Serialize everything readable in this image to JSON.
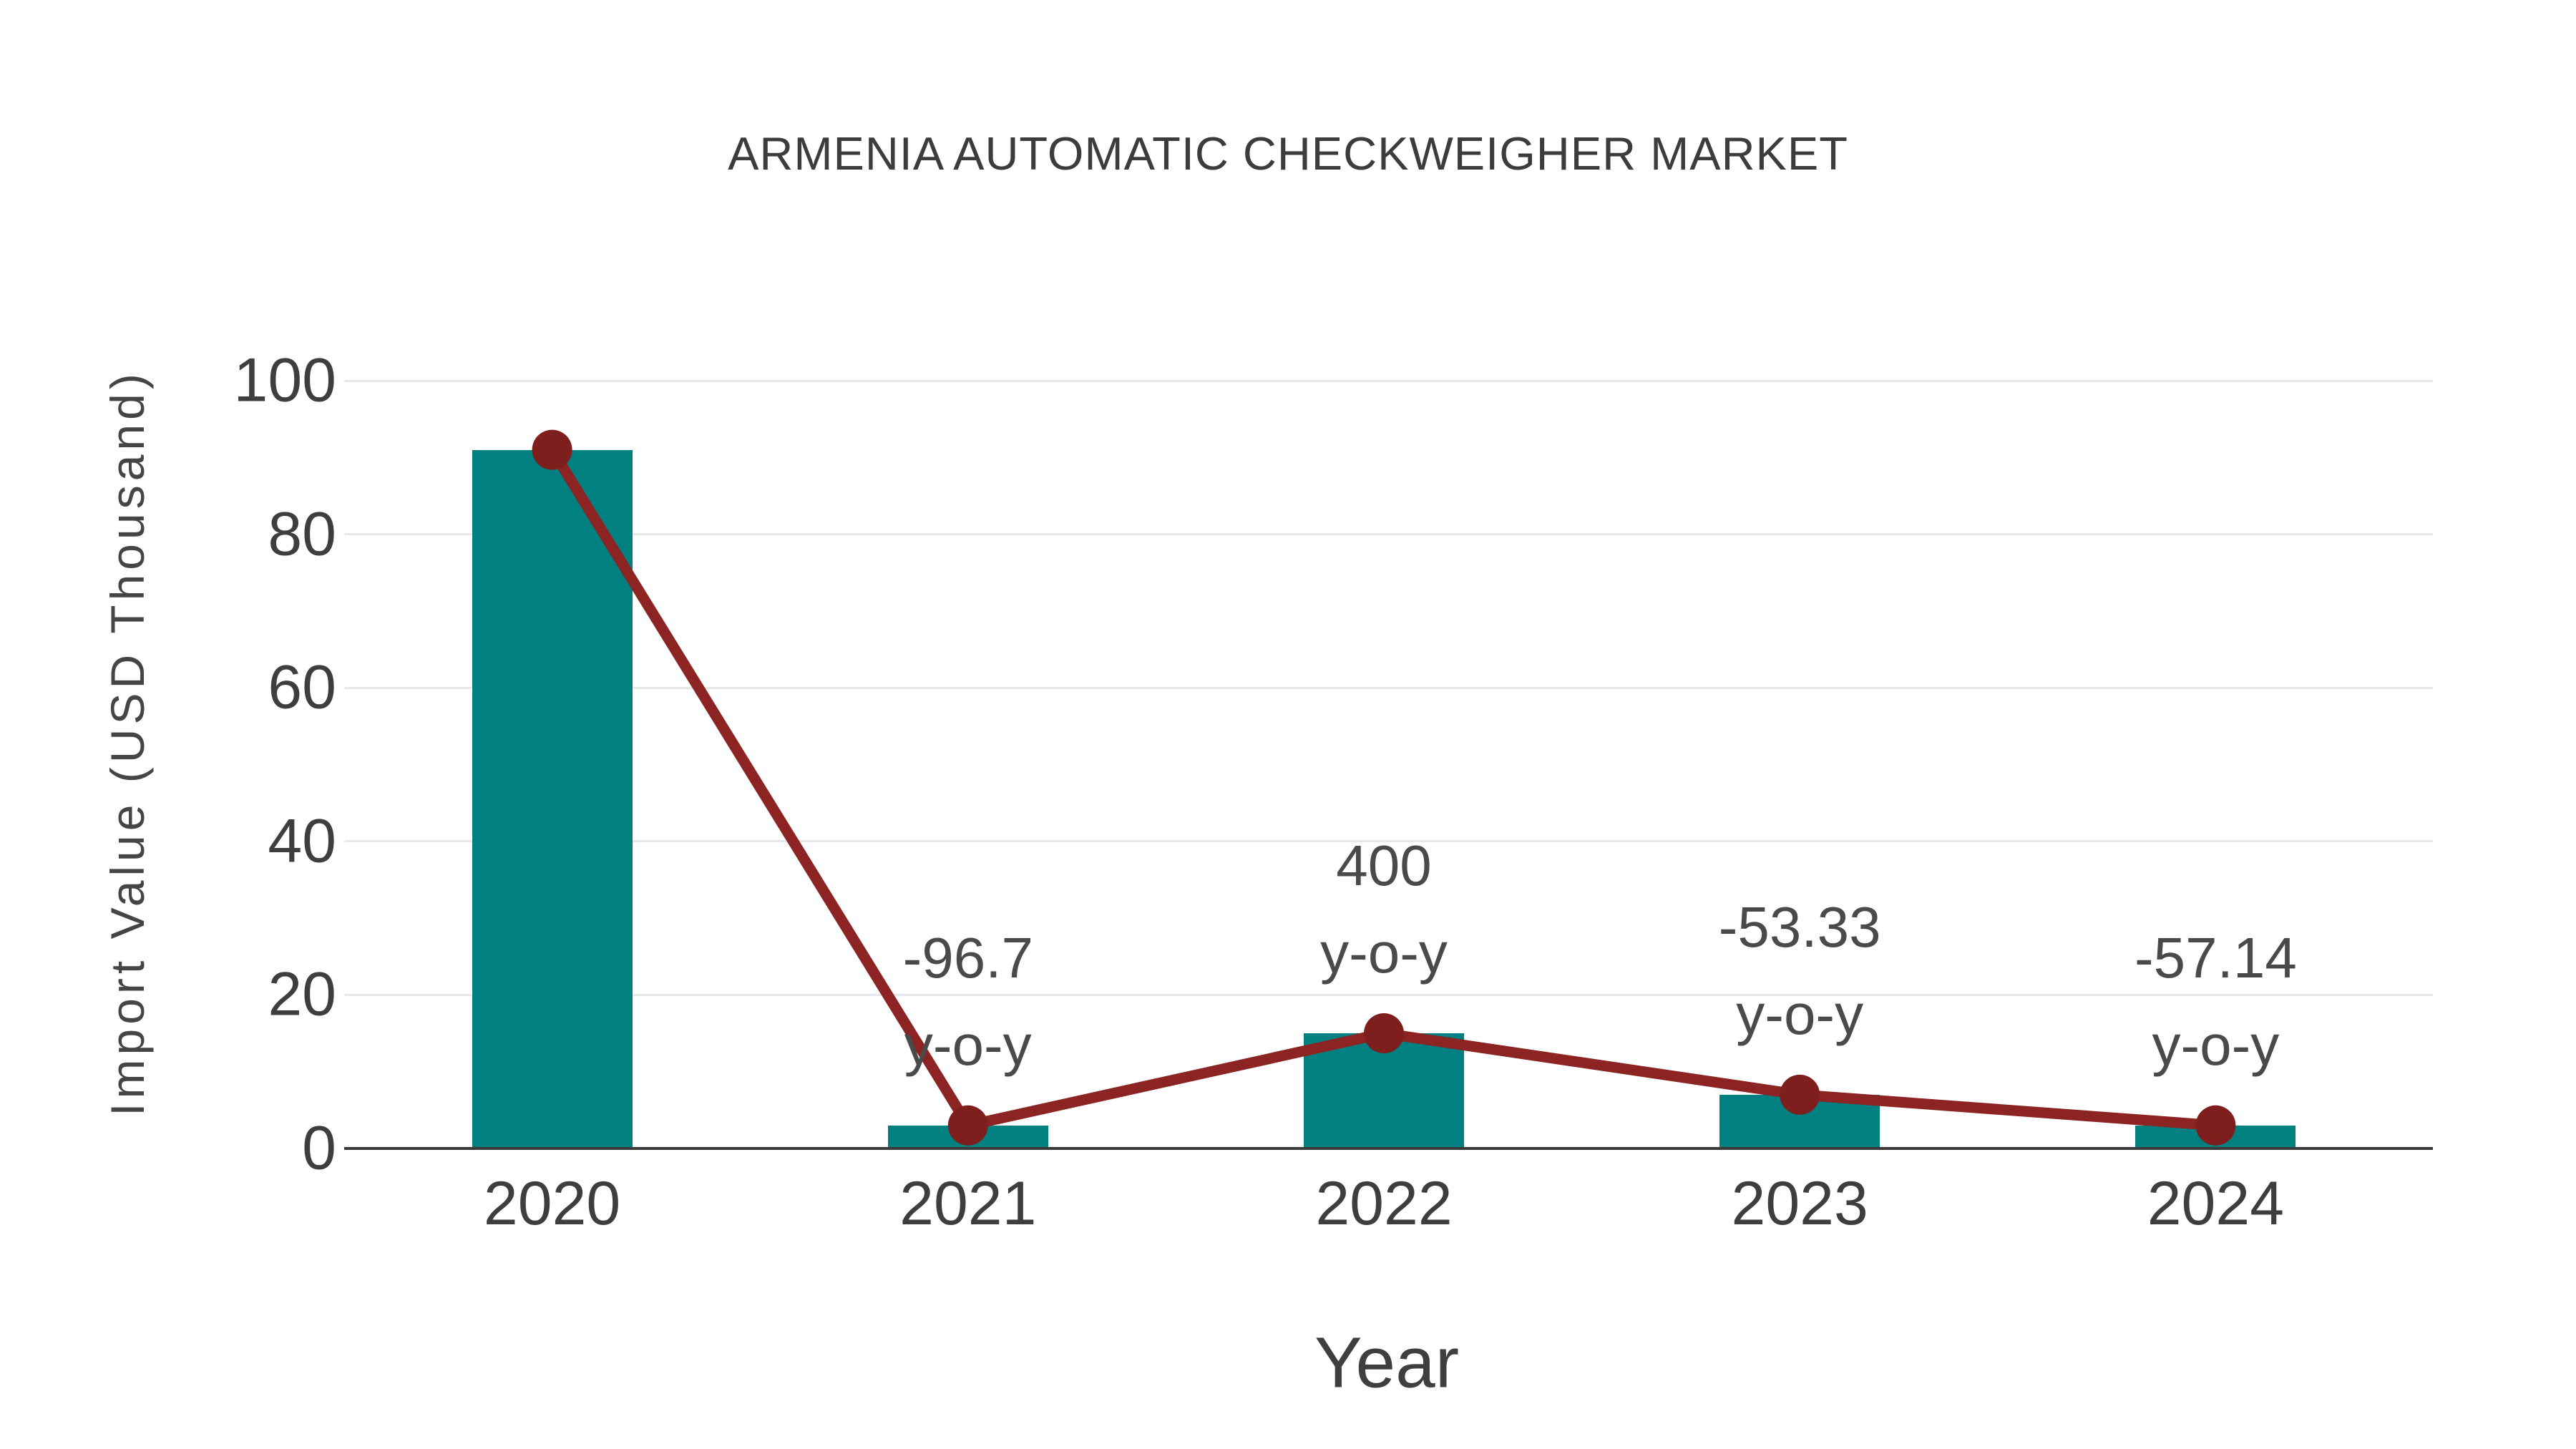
{
  "title": "ARMENIA AUTOMATIC CHECKWEIGHER MARKET",
  "chart_data": {
    "type": "bar",
    "subtype": "bar-with-trend-line",
    "title": "ARMENIA AUTOMATIC CHECKWEIGHER MARKET",
    "xlabel": "Year",
    "ylabel": "Import Value (USD Thousand)",
    "categories": [
      "2020",
      "2021",
      "2022",
      "2023",
      "2024"
    ],
    "series": [
      {
        "name": "Import Value (USD Thousand) bars",
        "type": "bar",
        "values": [
          91,
          3,
          15,
          7,
          3
        ]
      },
      {
        "name": "Import Value trend line",
        "type": "line",
        "values": [
          91,
          3,
          15,
          7,
          3
        ]
      }
    ],
    "annotations": [
      {
        "category": "2021",
        "lines": [
          "-96.7",
          "y-o-y"
        ]
      },
      {
        "category": "2022",
        "lines": [
          "400",
          "y-o-y"
        ]
      },
      {
        "category": "2023",
        "lines": [
          "-53.33",
          "y-o-y"
        ]
      },
      {
        "category": "2024",
        "lines": [
          "-57.14",
          "y-o-y"
        ]
      }
    ],
    "yticks": [
      0,
      20,
      40,
      60,
      80,
      100
    ],
    "ylim": [
      0,
      100
    ],
    "grid": "horizontal-light",
    "legend": "none"
  },
  "colors": {
    "bar": "#008080",
    "line": "#8b2422",
    "marker": "#7e1f1d",
    "grid": "#e8e8e8",
    "axis": "#3a3a3a",
    "tick_text": "#3e3e3e",
    "annotation_text": "#4a4a4a",
    "title_text": "#3c3c3c",
    "background": "#ffffff"
  }
}
